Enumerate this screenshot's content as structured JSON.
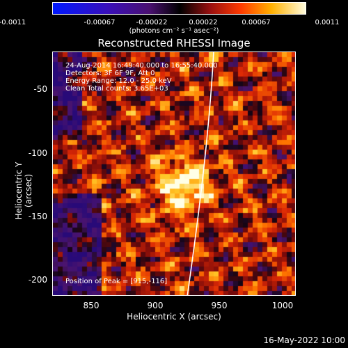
{
  "colorbar": {
    "tick_labels": [
      "-0.0011",
      "-0.00067",
      "-0.00022",
      "0.00022",
      "0.00067",
      "0.0011"
    ],
    "units": "(photons cm⁻² s⁻¹ asec⁻²)"
  },
  "title": "Reconstructed RHESSI Image",
  "annotations": {
    "time": "24-Aug-2014 16:49:40.000 to 16:55:40.000",
    "detectors": "Detectors: 3F 6F 9F, Att 0",
    "energy": "Energy Range: 12.0 - 25.0 keV",
    "clean": "Clean     Total counts: 3.65E+03",
    "peak": "Position of Peak = [915,-116]"
  },
  "axes": {
    "xlabel": "Heliocentric X (arcsec)",
    "ylabel": "Heliocentric Y (arcsec)",
    "xticks": [
      "850",
      "900",
      "950",
      "1000"
    ],
    "yticks": [
      "-50",
      "-100",
      "-150",
      "-200"
    ]
  },
  "footer": {
    "date": "16-May-2022 10:00"
  }
}
